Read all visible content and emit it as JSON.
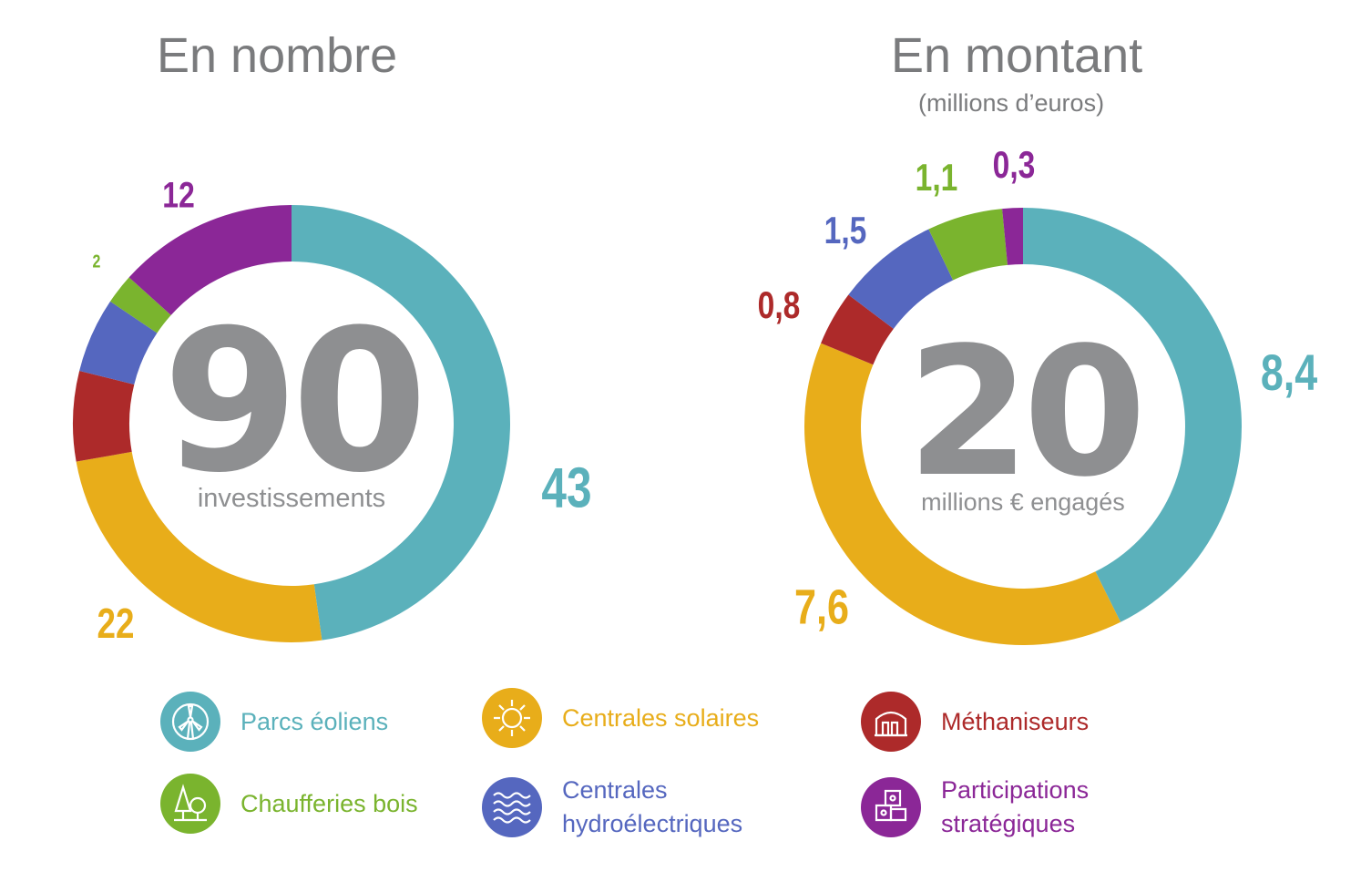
{
  "colors": {
    "eolien": "#5bb1bb",
    "solaire": "#e8ad1a",
    "methaniseur": "#ad2a2a",
    "hydro": "#5567bf",
    "bois": "#7ab42e",
    "participation": "#8b2797",
    "title": "#7a7b7d",
    "center": "#8e8f91"
  },
  "chart_data": [
    {
      "type": "donut",
      "title": "En nombre",
      "subtitle": "",
      "center_value": "90",
      "center_label": "investissements",
      "categories": [
        "Parcs éoliens",
        "Centrales solaires",
        "Méthaniseurs",
        "Centrales hydroélectriques",
        "Chaufferies bois",
        "Participations stratégiques"
      ],
      "values": [
        43,
        22,
        6,
        5,
        2,
        12
      ],
      "data_labels": [
        "43",
        "22",
        "",
        "",
        "2",
        "12"
      ]
    },
    {
      "type": "donut",
      "title": "En montant",
      "subtitle": "(millions d’euros)",
      "center_value": "20",
      "center_label": "millions € engagés",
      "categories": [
        "Parcs éoliens",
        "Centrales solaires",
        "Méthaniseurs",
        "Centrales hydroélectriques",
        "Chaufferies bois",
        "Participations stratégiques"
      ],
      "values": [
        8.4,
        7.6,
        0.8,
        1.5,
        1.1,
        0.3
      ],
      "data_labels": [
        "8,4",
        "7,6",
        "0,8",
        "1,5",
        "1,1",
        "0,3"
      ]
    }
  ],
  "legend": [
    {
      "key": "eolien",
      "lines": [
        "Parcs éoliens"
      ],
      "icon": "wind-turbine-icon"
    },
    {
      "key": "solaire",
      "lines": [
        "Centrales solaires"
      ],
      "icon": "sun-icon"
    },
    {
      "key": "methaniseur",
      "lines": [
        "Méthaniseurs"
      ],
      "icon": "digester-icon"
    },
    {
      "key": "bois",
      "lines": [
        "Chaufferies bois"
      ],
      "icon": "tree-icon"
    },
    {
      "key": "hydro",
      "lines": [
        "Centrales",
        "hydroélectriques"
      ],
      "icon": "water-waves-icon"
    },
    {
      "key": "participation",
      "lines": [
        "Participations",
        "stratégiques"
      ],
      "icon": "puzzle-icon"
    }
  ]
}
